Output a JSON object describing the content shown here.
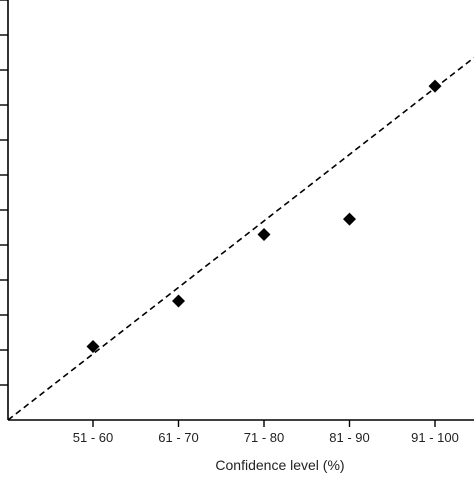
{
  "chart_data": {
    "type": "scatter",
    "title": "",
    "xlabel": "Confidence level (%)",
    "ylabel": "",
    "categories": [
      "51 - 60",
      "61 - 70",
      "71 - 80",
      "81 - 90",
      "91 - 100"
    ],
    "series": [
      {
        "values": [
          10.5,
          17,
          26.5,
          28.7,
          47.7
        ]
      }
    ],
    "reference_line": {
      "style": "dashed",
      "description": "diagonal from origin"
    },
    "ylim": [
      0,
      60
    ],
    "grid": false,
    "legend": "none",
    "colors": {
      "marker": "#000000",
      "axis": "#000000",
      "reference": "#000000"
    }
  }
}
